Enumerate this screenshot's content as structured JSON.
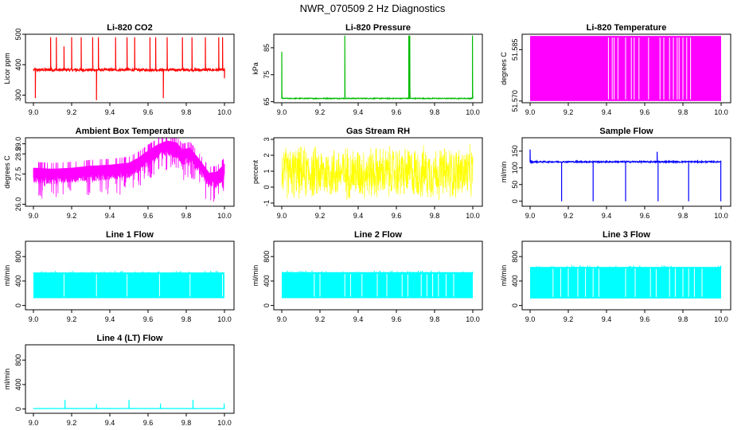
{
  "page": {
    "title": "NWR_070509  2 Hz Diagnostics"
  },
  "chart_data": [
    {
      "type": "line",
      "title": "Li-820 CO2",
      "ylabel": "Licor ppm",
      "color": "#ff0000",
      "xlim": [
        9.0,
        10.0
      ],
      "ylim": [
        275,
        500
      ],
      "xticks": [
        "9.0",
        "9.2",
        "9.4",
        "9.6",
        "9.8",
        "10.0"
      ],
      "yticks": [
        "300",
        "400",
        "500"
      ],
      "baseline": 383,
      "noise": 4,
      "spikes": [
        [
          9.01,
          290
        ],
        [
          9.09,
          490
        ],
        [
          9.12,
          490
        ],
        [
          9.16,
          460
        ],
        [
          9.2,
          490
        ],
        [
          9.25,
          490
        ],
        [
          9.31,
          490
        ],
        [
          9.33,
          283
        ],
        [
          9.34,
          490
        ],
        [
          9.43,
          490
        ],
        [
          9.49,
          490
        ],
        [
          9.53,
          490
        ],
        [
          9.61,
          490
        ],
        [
          9.64,
          490
        ],
        [
          9.68,
          290
        ],
        [
          9.7,
          490
        ],
        [
          9.78,
          490
        ],
        [
          9.83,
          490
        ],
        [
          9.9,
          490
        ],
        [
          9.97,
          490
        ],
        [
          9.99,
          490
        ],
        [
          10.0,
          355
        ]
      ]
    },
    {
      "type": "line",
      "title": "Li-820 Pressure",
      "ylabel": "kPa",
      "color": "#00bb00",
      "xlim": [
        9.0,
        10.0
      ],
      "ylim": [
        64.6,
        90
      ],
      "xticks": [
        "9.0",
        "9.2",
        "9.4",
        "9.6",
        "9.8",
        "10.0"
      ],
      "yticks": [
        "65",
        "75",
        "85"
      ],
      "baseline": 66.2,
      "noise": 0.15,
      "spikes": [
        [
          9.0,
          83.5
        ],
        [
          9.33,
          89.5
        ],
        [
          9.665,
          89.5
        ],
        [
          9.67,
          89.5
        ],
        [
          9.998,
          89.5
        ]
      ]
    },
    {
      "type": "band",
      "title": "Li-820 Temperature",
      "ylabel": "degrees C",
      "color": "#ff00ff",
      "xlim": [
        9.0,
        10.0
      ],
      "ylim": [
        51.5695,
        51.5895
      ],
      "xticks": [
        "9.0",
        "9.2",
        "9.4",
        "9.6",
        "9.8",
        "10.0"
      ],
      "yticks": [
        "51.570",
        "51.585"
      ],
      "low": 51.57,
      "high": 51.589,
      "gaps": [
        9.41,
        9.43,
        9.44,
        9.46,
        9.5,
        9.53,
        9.545,
        9.57,
        9.62,
        9.68,
        9.7,
        9.73,
        9.75,
        9.77,
        9.78,
        9.8,
        9.82,
        9.84
      ]
    },
    {
      "type": "line",
      "title": "Ambient Box Temperature",
      "ylabel": "degrees C",
      "color": "#ff00ff",
      "xlim": [
        9.0,
        10.0
      ],
      "ylim": [
        25.9,
        29.3
      ],
      "xticks": [
        "9.0",
        "9.2",
        "9.4",
        "9.6",
        "9.8",
        "10.0"
      ],
      "yticks": [
        "26.0",
        "27.5",
        "28.5",
        "29.0"
      ],
      "trend": [
        [
          9.0,
          27.6
        ],
        [
          9.1,
          27.55
        ],
        [
          9.2,
          27.6
        ],
        [
          9.3,
          27.7
        ],
        [
          9.4,
          27.75
        ],
        [
          9.5,
          27.85
        ],
        [
          9.55,
          28.1
        ],
        [
          9.6,
          28.45
        ],
        [
          9.65,
          28.75
        ],
        [
          9.7,
          28.95
        ],
        [
          9.75,
          28.85
        ],
        [
          9.78,
          28.5
        ],
        [
          9.82,
          28.6
        ],
        [
          9.87,
          28.0
        ],
        [
          9.92,
          27.35
        ],
        [
          9.96,
          27.4
        ],
        [
          10.0,
          27.8
        ]
      ],
      "noise": 0.35
    },
    {
      "type": "noise",
      "title": "Gas Stream RH",
      "ylabel": "percent",
      "color": "#ffff00",
      "xlim": [
        9.0,
        10.0
      ],
      "ylim": [
        -1.2,
        3.1
      ],
      "xticks": [
        "9.0",
        "9.2",
        "9.4",
        "9.6",
        "9.8",
        "10.0"
      ],
      "yticks": [
        "-1",
        "0",
        "1",
        "2",
        "3"
      ],
      "low": -0.7,
      "high": 2.7,
      "center": 0.9
    },
    {
      "type": "flow",
      "title": "Sample Flow",
      "ylabel": "ml/min",
      "color": "#0000ff",
      "xlim": [
        9.0,
        10.0
      ],
      "ylim": [
        -15,
        190
      ],
      "xticks": [
        "9.0",
        "9.2",
        "9.4",
        "9.6",
        "9.8",
        "10.0"
      ],
      "yticks": [
        "0",
        "50",
        "100",
        "150"
      ],
      "baseline": 118,
      "noise": 2,
      "drops": [
        [
          9.165,
          0
        ],
        [
          9.33,
          0
        ],
        [
          9.5,
          0
        ],
        [
          9.67,
          0
        ],
        [
          9.83,
          0
        ],
        [
          9.998,
          0
        ]
      ],
      "spikes": [
        [
          9.0,
          155
        ],
        [
          9.33,
          150
        ],
        [
          9.665,
          148
        ]
      ]
    },
    {
      "type": "flowband",
      "title": "Line 1 Flow",
      "ylabel": "ml/min",
      "color": "#00ffff",
      "xlim": [
        9.0,
        10.0
      ],
      "ylim": [
        -70,
        1050
      ],
      "xticks": [
        "9.0",
        "9.2",
        "9.4",
        "9.6",
        "9.8",
        "10.0"
      ],
      "yticks": [
        "0",
        "400",
        "800"
      ],
      "low": 120,
      "high": 540,
      "gaps": [
        9.16,
        9.33,
        9.49,
        9.66,
        9.82,
        9.99
      ]
    },
    {
      "type": "flowband",
      "title": "Line 2 Flow",
      "ylabel": "ml/min",
      "color": "#00ffff",
      "xlim": [
        9.0,
        10.0
      ],
      "ylim": [
        -70,
        1050
      ],
      "xticks": [
        "9.0",
        "9.2",
        "9.4",
        "9.6",
        "9.8",
        "10.0"
      ],
      "yticks": [
        "0",
        "400",
        "800"
      ],
      "low": 120,
      "high": 545,
      "gaps": [
        9.17,
        9.2,
        9.33,
        9.36,
        9.42,
        9.5,
        9.55,
        9.63,
        9.66,
        9.73,
        9.76,
        9.79,
        9.82,
        9.86,
        9.9
      ]
    },
    {
      "type": "flowband",
      "title": "Line 3 Flow",
      "ylabel": "ml/min",
      "color": "#00ffff",
      "xlim": [
        9.0,
        10.0
      ],
      "ylim": [
        -70,
        1050
      ],
      "xticks": [
        "9.0",
        "9.2",
        "9.4",
        "9.6",
        "9.8",
        "10.0"
      ],
      "yticks": [
        "0",
        "400",
        "800"
      ],
      "low": 115,
      "high": 630,
      "gaps": [
        9.12,
        9.16,
        9.2,
        9.25,
        9.29,
        9.33,
        9.36,
        9.5,
        9.55,
        9.63,
        9.66,
        9.73,
        9.76,
        9.8,
        9.83,
        9.86,
        9.9
      ]
    },
    {
      "type": "flow",
      "title": "Line 4 (LT) Flow",
      "ylabel": "ml/min",
      "color": "#00ffff",
      "xlim": [
        9.0,
        10.0
      ],
      "ylim": [
        -70,
        1050
      ],
      "xticks": [
        "9.0",
        "9.2",
        "9.4",
        "9.6",
        "9.8",
        "10.0"
      ],
      "yticks": [
        "0",
        "400",
        "800"
      ],
      "baseline": 8,
      "noise": 2,
      "drops": [],
      "spikes": [
        [
          9.165,
          150
        ],
        [
          9.33,
          80
        ],
        [
          9.5,
          150
        ],
        [
          9.665,
          90
        ],
        [
          9.835,
          150
        ],
        [
          9.998,
          90
        ]
      ]
    }
  ]
}
